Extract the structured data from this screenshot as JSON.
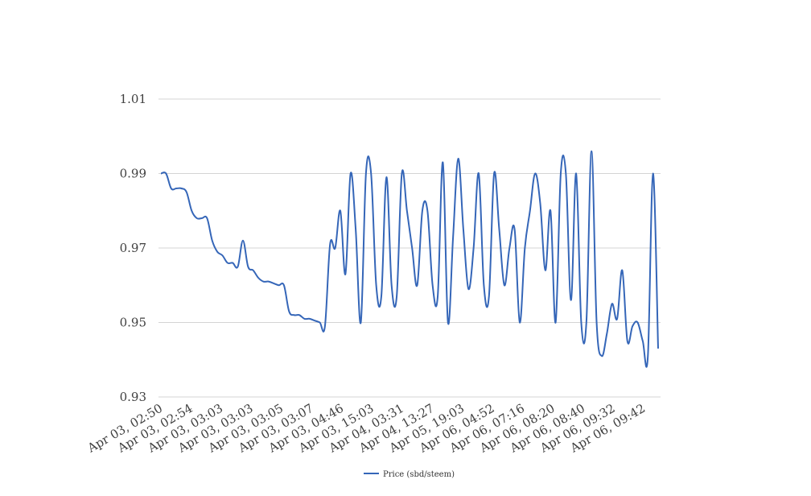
{
  "chart_data": {
    "type": "line",
    "title": "",
    "xlabel": "",
    "ylabel": "",
    "ylim": [
      0.93,
      1.01
    ],
    "y_ticks": [
      "0.93",
      "0.95",
      "0.97",
      "0.99",
      "1.01"
    ],
    "x_tick_labels": [
      "Apr 03, 02:50",
      "Apr 03, 02:54",
      "Apr 03, 03:03",
      "Apr 03, 03:03",
      "Apr 03, 03:05",
      "Apr 03, 03:07",
      "Apr 03, 04:46",
      "Apr 03, 15:03",
      "Apr 04, 03:31",
      "Apr 04, 13:27",
      "Apr 05, 19:03",
      "Apr 06, 04:52",
      "Apr 06, 07:16",
      "Apr 06, 08:20",
      "Apr 06, 08:40",
      "Apr 06, 09:32",
      "Apr 06, 09:42"
    ],
    "grid": true,
    "legend": "bottom",
    "series": [
      {
        "name": "Price (sbd/steem)",
        "color": "#3566b8",
        "values": [
          0.99,
          0.99,
          0.986,
          0.986,
          0.986,
          0.985,
          0.98,
          0.978,
          0.978,
          0.978,
          0.972,
          0.969,
          0.968,
          0.966,
          0.966,
          0.965,
          0.972,
          0.965,
          0.964,
          0.962,
          0.961,
          0.961,
          0.9605,
          0.96,
          0.96,
          0.953,
          0.952,
          0.952,
          0.951,
          0.951,
          0.9505,
          0.95,
          0.949,
          0.971,
          0.97,
          0.98,
          0.963,
          0.99,
          0.975,
          0.95,
          0.99,
          0.99,
          0.96,
          0.957,
          0.989,
          0.96,
          0.957,
          0.99,
          0.98,
          0.97,
          0.96,
          0.98,
          0.98,
          0.96,
          0.957,
          0.993,
          0.95,
          0.973,
          0.994,
          0.975,
          0.959,
          0.97,
          0.99,
          0.96,
          0.957,
          0.99,
          0.975,
          0.96,
          0.97,
          0.975,
          0.95,
          0.97,
          0.98,
          0.99,
          0.982,
          0.964,
          0.98,
          0.95,
          0.99,
          0.99,
          0.956,
          0.99,
          0.95,
          0.95,
          0.996,
          0.95,
          0.941,
          0.947,
          0.955,
          0.951,
          0.964,
          0.945,
          0.949,
          0.95,
          0.945,
          0.941,
          0.99,
          0.943
        ]
      }
    ]
  }
}
